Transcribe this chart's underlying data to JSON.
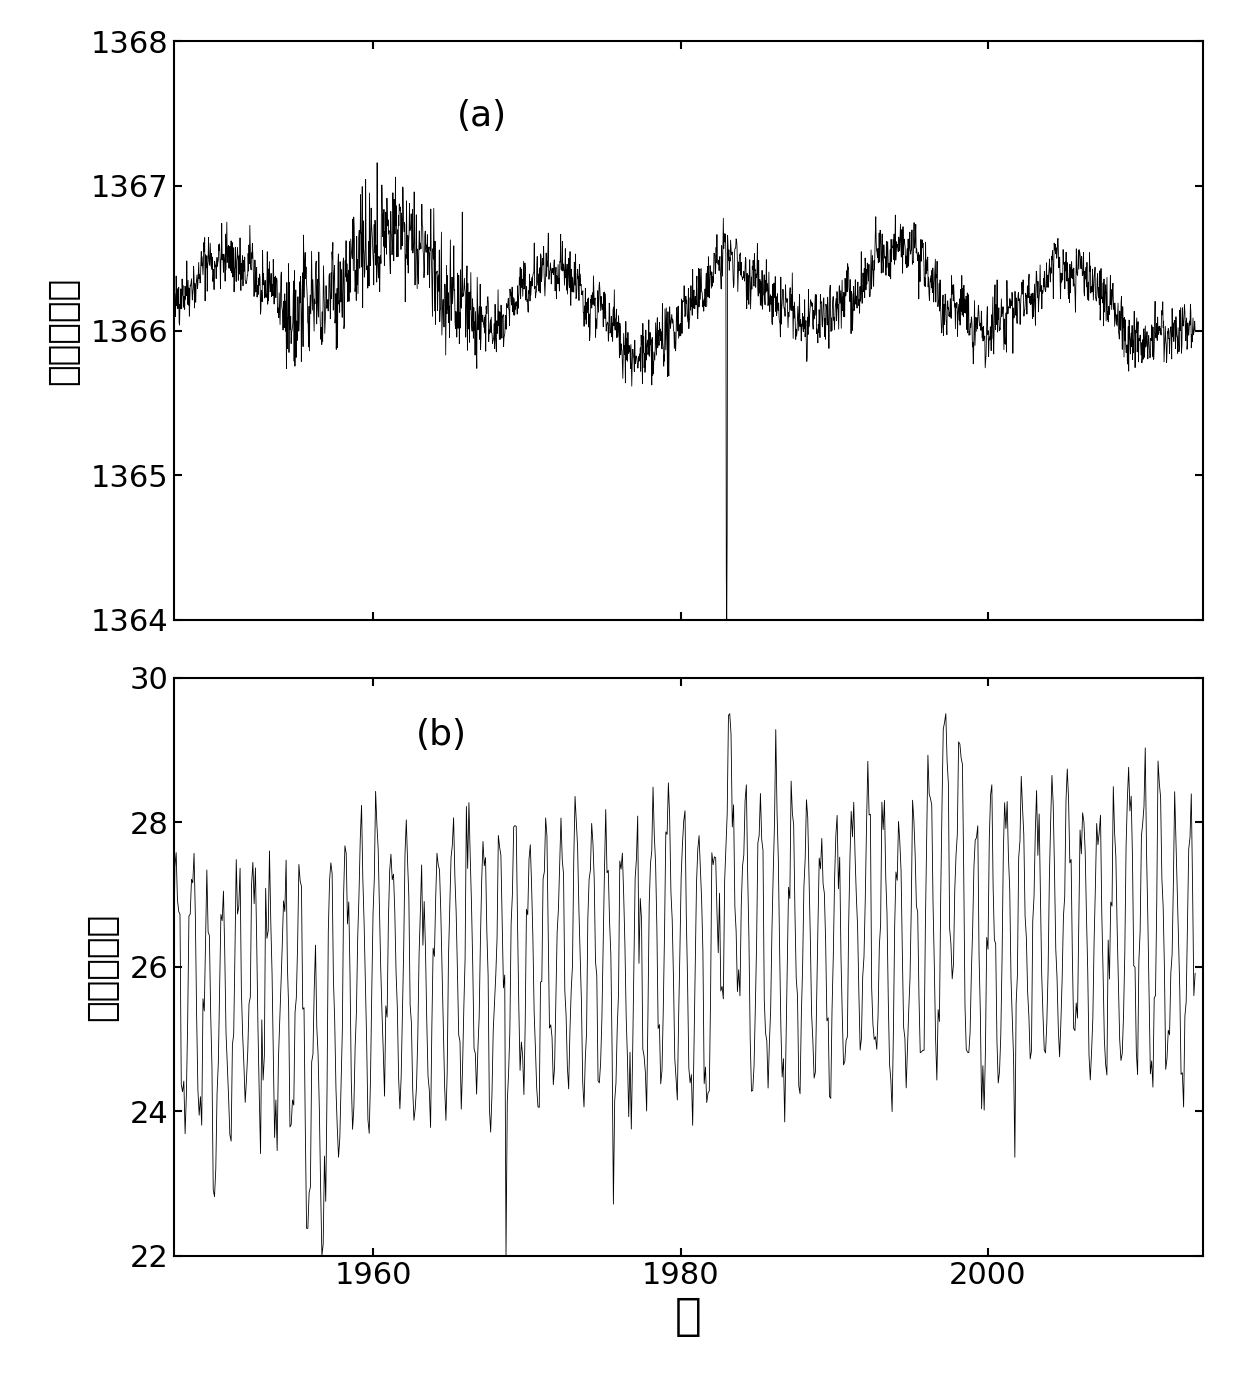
{
  "title_a": "(a)",
  "title_b": "(b)",
  "ylabel_a": "太阳总辐射",
  "ylabel_b": "海表面温度",
  "xlabel": "年",
  "xlim": [
    1947,
    2014
  ],
  "ylim_a": [
    1364,
    1368
  ],
  "ylim_b": [
    22,
    30
  ],
  "yticks_a": [
    1364,
    1365,
    1366,
    1367,
    1368
  ],
  "yticks_b": [
    22,
    24,
    26,
    28,
    30
  ],
  "xticks": [
    1960,
    1980,
    2000
  ],
  "line_color": "#000000",
  "line_width": 0.6,
  "bg_color": "#ffffff",
  "fig_bg": "#ffffff",
  "n_points_tsi": 2400,
  "n_points_sst": 800,
  "x_start": 1947,
  "x_end": 2013.5
}
